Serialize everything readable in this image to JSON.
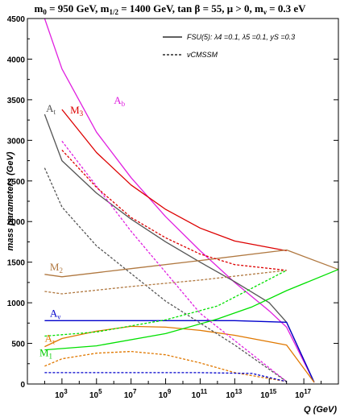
{
  "chart_data": {
    "type": "line",
    "title": "m0 = 950 GeV, m1/2 = 1400 GeV, tan β = 55,  μ > 0, mν = 0.3 eV",
    "xlabel": "Q (GeV)",
    "ylabel": "mass parameters (GeV)",
    "xscale": "log",
    "xlim": [
      10,
      1e+19
    ],
    "ylim": [
      0,
      4500
    ],
    "yticks": [
      "0",
      "500",
      "1000",
      "1500",
      "2000",
      "2500",
      "3000",
      "3500",
      "4000",
      "4500"
    ],
    "xticks": [
      "10^3",
      "10^5",
      "10^7",
      "10^9",
      "10^11",
      "10^13",
      "10^15",
      "10^17"
    ],
    "legend": {
      "position": "top-right",
      "entries": [
        {
          "label": "FSU(5): λ4 =0.1, λ5 =0.1, yS =0.3",
          "style": "solid"
        },
        {
          "label": "νCMSSM",
          "style": "dashed"
        }
      ]
    },
    "annotations": [
      {
        "text": "Ab",
        "color": "#e020e0",
        "x": 1000000.0,
        "y": 3450
      },
      {
        "text": "At",
        "color": "#555555",
        "x": 120,
        "y": 3350
      },
      {
        "text": "M3",
        "color": "#dd0000",
        "x": 3000,
        "y": 3330
      },
      {
        "text": "M2",
        "color": "#b07840",
        "x": 200,
        "y": 1400
      },
      {
        "text": "Aν",
        "color": "#0000cc",
        "x": 200,
        "y": 830
      },
      {
        "text": "Aτ",
        "color": "#e07800",
        "x": 100,
        "y": 520
      },
      {
        "text": "M1",
        "color": "#00cc00",
        "x": 50,
        "y": 340
      }
    ],
    "series": [
      {
        "label": "Ab",
        "style": "solid",
        "color": "#e020e0",
        "x": [
          100,
          1000,
          100000.0,
          10000000.0,
          1000000000.0,
          100000000000.0,
          10000000000000.0,
          1000000000000000.0,
          1e+16,
          4e+17
        ],
        "y": [
          4500,
          3880,
          3100,
          2540,
          2060,
          1640,
          1250,
          900,
          700,
          20
        ]
      },
      {
        "label": "M3",
        "style": "solid",
        "color": "#dd0000",
        "x": [
          1000,
          100000.0,
          10000000.0,
          1000000000.0,
          100000000000.0,
          10000000000000.0,
          1e+16
        ],
        "y": [
          3380,
          2850,
          2450,
          2150,
          1920,
          1760,
          1640
        ]
      },
      {
        "label": "At",
        "style": "solid",
        "color": "#555555",
        "x": [
          100,
          1000,
          100000.0,
          10000000.0,
          1000000000.0,
          100000000000.0,
          10000000000000.0,
          1000000000000000.0,
          1e+16,
          4e+17
        ],
        "y": [
          3320,
          2750,
          2350,
          2030,
          1750,
          1500,
          1260,
          1000,
          760,
          20
        ]
      },
      {
        "label": "M2",
        "style": "solid",
        "color": "#b07840",
        "x": [
          100,
          1000,
          10000000.0,
          100000000000.0,
          1e+16,
          1e+19
        ],
        "y": [
          1350,
          1320,
          1420,
          1520,
          1650,
          1410
        ]
      },
      {
        "label": "Aν",
        "style": "solid",
        "color": "#0000cc",
        "x": [
          100,
          100000000.0,
          10000000000000.0,
          1e+16,
          4e+17
        ],
        "y": [
          780,
          780,
          780,
          760,
          20
        ]
      },
      {
        "label": "Aτ",
        "style": "solid",
        "color": "#e07800",
        "x": [
          100,
          1000,
          100000.0,
          10000000.0,
          1000000000.0,
          100000000000.0,
          10000000000000.0,
          1e+16,
          4e+17
        ],
        "y": [
          460,
          560,
          650,
          710,
          700,
          660,
          600,
          480,
          20
        ]
      },
      {
        "label": "M1",
        "style": "solid",
        "color": "#00e000",
        "x": [
          100,
          100000.0,
          1000000000.0,
          1000000000000.0,
          100000000000000.0,
          1e+16,
          1e+19
        ],
        "y": [
          420,
          470,
          620,
          800,
          950,
          1150,
          1410
        ]
      },
      {
        "label": "Ab (νCMSSM)",
        "style": "dashed",
        "color": "#e020e0",
        "x": [
          1000,
          10000000.0,
          100000000000.0,
          1e+16
        ],
        "y": [
          2990,
          1880,
          870,
          30
        ]
      },
      {
        "label": "M3 (νCMSSM)",
        "style": "dashed",
        "color": "#dd0000",
        "x": [
          1000,
          100000.0,
          10000000.0,
          1000000000.0,
          100000000000.0,
          10000000000000.0,
          1e+16
        ],
        "y": [
          2880,
          2420,
          2050,
          1800,
          1600,
          1470,
          1400
        ]
      },
      {
        "label": "At (νCMSSM)",
        "style": "dashed",
        "color": "#555555",
        "x": [
          100,
          1000,
          100000.0,
          1000000000.0,
          10000000000000.0,
          1e+16
        ],
        "y": [
          2660,
          2180,
          1700,
          1020,
          480,
          30
        ]
      },
      {
        "label": "M2 (νCMSSM)",
        "style": "dashed",
        "color": "#b07840",
        "x": [
          100,
          1000,
          10000000.0,
          100000000000.0,
          1e+16
        ],
        "y": [
          1140,
          1110,
          1200,
          1280,
          1400
        ]
      },
      {
        "label": "M1 (νCMSSM)",
        "style": "dashed",
        "color": "#00e000",
        "x": [
          100,
          100000.0,
          1000000000.0,
          1000000000000.0,
          1e+16
        ],
        "y": [
          590,
          640,
          790,
          960,
          1400
        ]
      },
      {
        "label": "Aτ (νCMSSM)",
        "style": "dashed",
        "color": "#e07800",
        "x": [
          100,
          1000,
          100000.0,
          10000000.0,
          1000000000.0,
          100000000000.0,
          10000000000000.0,
          1e+16
        ],
        "y": [
          220,
          310,
          380,
          400,
          360,
          260,
          140,
          30
        ]
      },
      {
        "label": "Aν (νCMSSM)",
        "style": "dashed",
        "color": "#0000cc",
        "x": [
          100,
          100000000000.0,
          100000000000000.0,
          1e+16
        ],
        "y": [
          140,
          140,
          130,
          30
        ]
      }
    ]
  }
}
